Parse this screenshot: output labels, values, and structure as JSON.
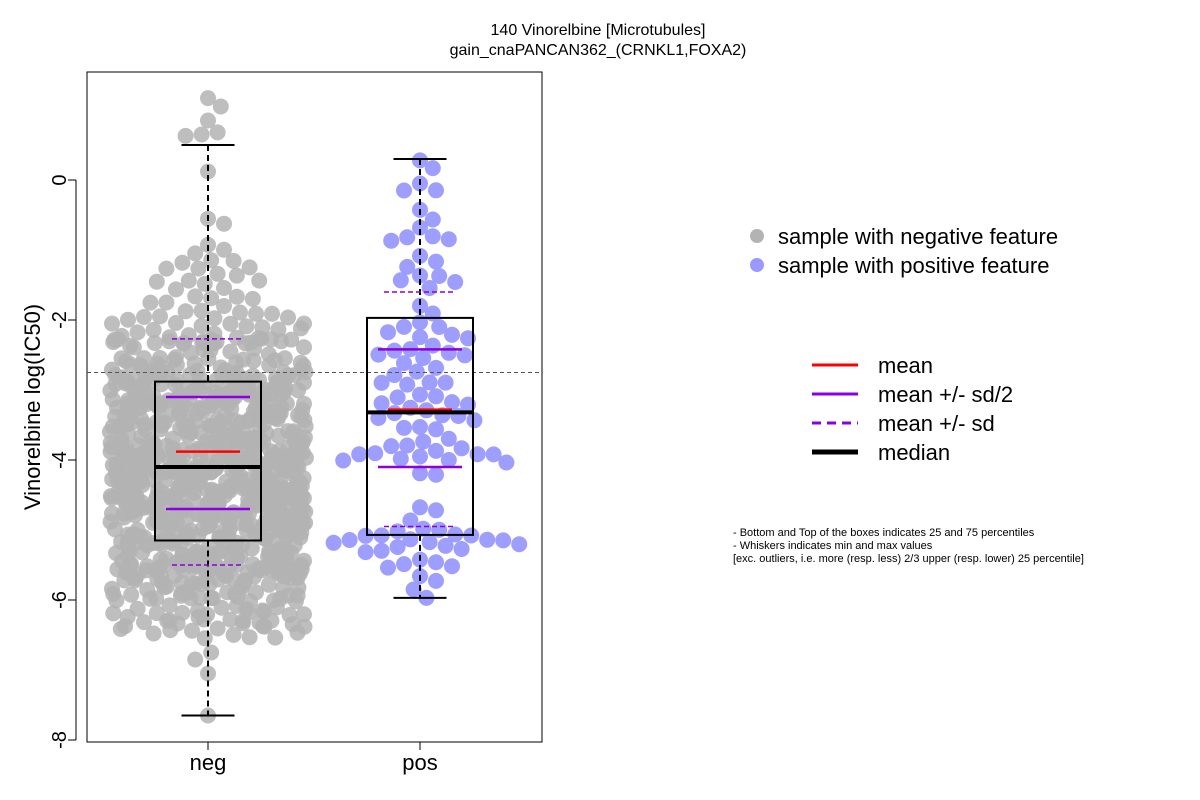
{
  "chart_data": {
    "type": "scatter",
    "title": "140 Vinorelbine [Microtubules]",
    "subtitle": "gain_cnaPANCAN362_(CRNKL1,FOXA2)",
    "xlabel": "",
    "ylabel": "Vinorelbine log(IC50)",
    "ylim": [
      -8.0,
      1.5
    ],
    "yticks": [
      0,
      -2,
      -4,
      -6,
      -8
    ],
    "ytick_labels": [
      "0",
      "-2",
      "-4",
      "-6",
      "-8"
    ],
    "reference_line_y": -2.75,
    "categories": [
      "neg",
      "pos"
    ],
    "groups": [
      {
        "category": "neg",
        "color": "#b3b3b3",
        "n_points": 900,
        "whisker_low": -7.65,
        "q1": -5.15,
        "median": -4.1,
        "q3": -2.88,
        "whisker_high": 0.5,
        "mean": -3.88,
        "mean_minus_half_sd": -4.7,
        "mean_plus_half_sd": -3.1,
        "mean_minus_sd": -5.5,
        "mean_plus_sd": -2.27,
        "extreme_points": [
          1.17,
          1.05,
          0.85,
          0.68,
          0.65,
          0.63,
          -6.75,
          -6.85,
          -7.05,
          -7.65
        ]
      },
      {
        "category": "pos",
        "color": "#9999ff",
        "n_points": 110,
        "whisker_low": -5.97,
        "q1": -5.07,
        "median": -3.32,
        "q3": -1.97,
        "whisker_high": 0.3,
        "mean": -3.28,
        "mean_minus_half_sd": -4.1,
        "mean_plus_half_sd": -2.42,
        "mean_minus_sd": -4.95,
        "mean_plus_sd": -1.6,
        "extreme_points": [
          0.28,
          0.17,
          -0.05,
          -0.15,
          -5.97,
          -5.85
        ]
      }
    ],
    "legend_points": [
      {
        "label": "sample with negative feature",
        "color": "#b3b3b3"
      },
      {
        "label": "sample with positive feature",
        "color": "#9999ff"
      }
    ],
    "legend_lines": [
      {
        "label": "mean",
        "color": "#ff0000",
        "style": "solid"
      },
      {
        "label": "mean +/- sd/2",
        "color": "#8b00e0",
        "style": "solid"
      },
      {
        "label": "mean +/- sd",
        "color": "#8b00e0",
        "style": "dashed"
      },
      {
        "label": "median",
        "color": "#000000",
        "style": "solid-thick"
      }
    ],
    "notes": [
      "- Bottom and Top of the boxes indicates 25 and 75 percentiles",
      "- Whiskers indicates min and max values",
      "[exc. outliers, i.e. more (resp. less) 2/3 upper (resp. lower) 25 percentile]"
    ]
  }
}
